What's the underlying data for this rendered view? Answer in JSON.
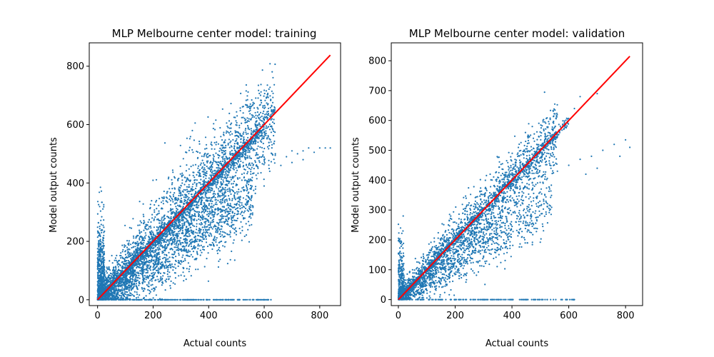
{
  "chart_data": [
    {
      "type": "scatter",
      "title": "MLP Melbourne center model:  training",
      "xlabel": "Actual counts",
      "ylabel": "Model output counts",
      "xlim": [
        -30,
        875
      ],
      "ylim": [
        -20,
        880
      ],
      "xticks": [
        0,
        200,
        400,
        600,
        800
      ],
      "yticks": [
        0,
        200,
        400,
        600,
        800
      ],
      "grid": false,
      "point_color": "#1f77b4",
      "line_color": "#ff0000",
      "fit_line": {
        "x": [
          0,
          838
        ],
        "y": [
          0,
          838
        ]
      },
      "clusters": [
        {
          "x_range": [
            0,
            640
          ],
          "slope": 1.0,
          "spread": 80,
          "count": 2600
        },
        {
          "x_range": [
            0,
            560
          ],
          "slope": 0.62,
          "spread": 55,
          "count": 1500
        },
        {
          "x_range": [
            0,
            600
          ],
          "slope": 0.98,
          "spread": 12,
          "count": 1300
        },
        {
          "x_range": [
            0,
            630
          ],
          "slope": 0.0,
          "spread": 0,
          "count": 260
        },
        {
          "x_range": [
            0,
            25
          ],
          "slope": 0.0,
          "spread": 120,
          "count": 500
        }
      ],
      "extra_points": [
        [
          520,
          430
        ],
        [
          560,
          460
        ],
        [
          600,
          480
        ],
        [
          640,
          500
        ],
        [
          680,
          490
        ],
        [
          700,
          510
        ],
        [
          720,
          500
        ],
        [
          740,
          510
        ],
        [
          760,
          520
        ],
        [
          780,
          505
        ],
        [
          800,
          520
        ],
        [
          820,
          520
        ],
        [
          838,
          520
        ],
        [
          700,
          470
        ],
        [
          660,
          460
        ],
        [
          620,
          440
        ],
        [
          740,
          480
        ]
      ]
    },
    {
      "type": "scatter",
      "title": "MLP Melbourne center model:  validation",
      "xlabel": "Actual counts",
      "ylabel": "Model output counts",
      "xlim": [
        -25,
        860
      ],
      "ylim": [
        -20,
        860
      ],
      "xticks": [
        0,
        200,
        400,
        600,
        800
      ],
      "yticks": [
        0,
        100,
        200,
        300,
        400,
        500,
        600,
        700,
        800
      ],
      "grid": false,
      "point_color": "#1f77b4",
      "line_color": "#ff0000",
      "fit_line": {
        "x": [
          0,
          815
        ],
        "y": [
          0,
          815
        ]
      },
      "clusters": [
        {
          "x_range": [
            0,
            560
          ],
          "slope": 0.98,
          "spread": 55,
          "count": 1800
        },
        {
          "x_range": [
            0,
            540
          ],
          "slope": 0.62,
          "spread": 45,
          "count": 900
        },
        {
          "x_range": [
            0,
            600
          ],
          "slope": 1.0,
          "spread": 10,
          "count": 800
        },
        {
          "x_range": [
            0,
            620
          ],
          "slope": 0.0,
          "spread": 0,
          "count": 160
        },
        {
          "x_range": [
            0,
            20
          ],
          "slope": 0.0,
          "spread": 90,
          "count": 250
        }
      ],
      "extra_points": [
        [
          560,
          430
        ],
        [
          600,
          450
        ],
        [
          640,
          470
        ],
        [
          680,
          480
        ],
        [
          720,
          500
        ],
        [
          760,
          520
        ],
        [
          800,
          535
        ],
        [
          815,
          510
        ],
        [
          780,
          480
        ],
        [
          700,
          440
        ],
        [
          660,
          420
        ],
        [
          640,
          680
        ],
        [
          700,
          690
        ],
        [
          620,
          640
        ]
      ]
    }
  ]
}
